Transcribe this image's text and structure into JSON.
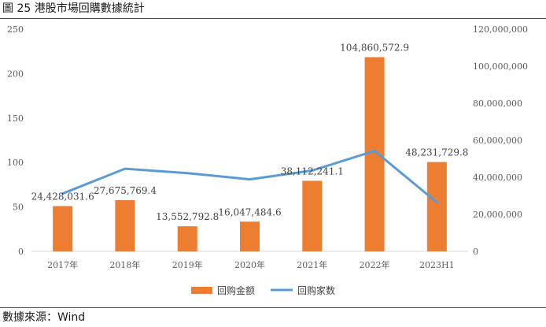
{
  "title": "圖 25 港股市場回購數據統計",
  "source": "數據來源：Wind",
  "colors": {
    "bar": "#ED7D31",
    "line": "#5B9BD5",
    "grid": "#D9D9D9",
    "text": "#595959"
  },
  "chart_data": {
    "type": "bar+line",
    "categories": [
      "2017年",
      "2018年",
      "2019年",
      "2020年",
      "2021年",
      "2022年",
      "2023H1"
    ],
    "series": [
      {
        "name": "回购金额",
        "type": "bar",
        "axis": "right",
        "values": [
          24428031.6,
          27675769.4,
          13552792.8,
          16047484.6,
          38112241.1,
          104860572.9,
          48231729.8
        ],
        "data_labels": [
          "24,428,031.6",
          "27,675,769.4",
          "13,552,792.8",
          "16,047,484.6",
          "38,112,241.1",
          "104,860,572.9",
          "48,231,729.8"
        ]
      },
      {
        "name": "回购家数",
        "type": "line",
        "axis": "left",
        "values": [
          65,
          93,
          88,
          81,
          91,
          113,
          55
        ]
      }
    ],
    "y_left": {
      "min": 0,
      "max": 250,
      "ticks": [
        "0",
        "50",
        "100",
        "150",
        "200",
        "250"
      ]
    },
    "y_right": {
      "min": 0,
      "max": 120000000,
      "ticks": [
        "0",
        "20,000,000",
        "40,000,000",
        "60,000,000",
        "80,000,000",
        "100,000,000",
        "120,000,000"
      ]
    },
    "grid": false,
    "legend": "bottom-center"
  }
}
